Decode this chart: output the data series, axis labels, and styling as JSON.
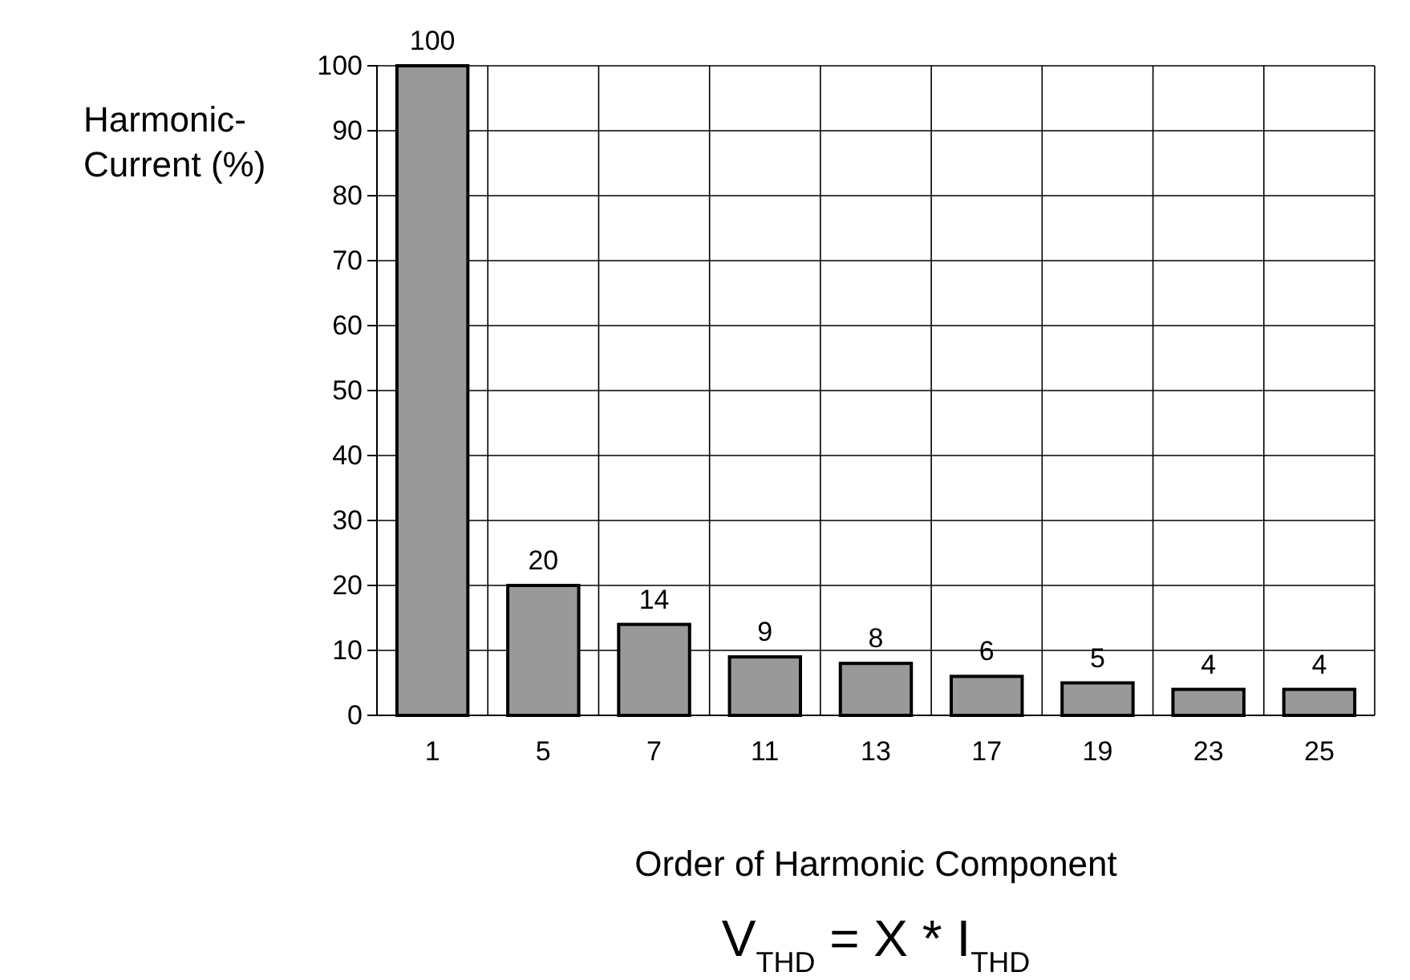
{
  "chart_data": {
    "type": "bar",
    "xlabel": "Order of Harmonic Component",
    "ylabel": "Harmonic-\nCurrent (%)",
    "categories": [
      "1",
      "5",
      "7",
      "11",
      "13",
      "17",
      "19",
      "23",
      "25"
    ],
    "values": [
      100,
      20,
      14,
      9,
      8,
      6,
      5,
      4,
      4
    ],
    "color": "#999999",
    "ylim": [
      0,
      100
    ],
    "yticks": [
      0,
      10,
      20,
      30,
      40,
      50,
      60,
      70,
      80,
      90,
      100
    ],
    "grid": true,
    "data_labels": true,
    "annotations": [
      "V$_{THD}$ = X * I$_{THD}$"
    ]
  }
}
